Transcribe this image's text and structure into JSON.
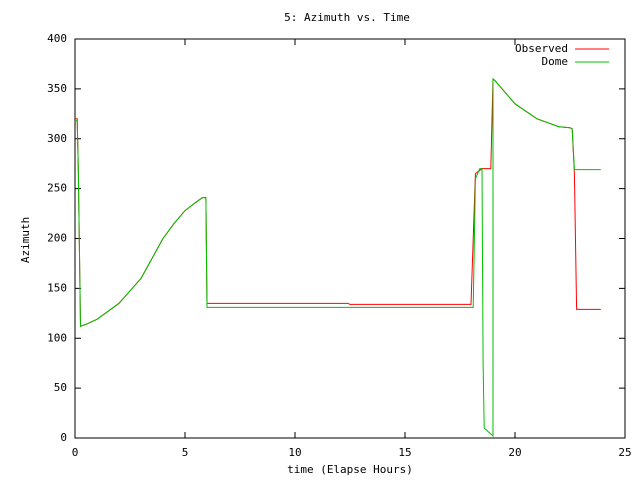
{
  "chart_data": {
    "type": "line",
    "title": "5: Azimuth vs. Time",
    "x_label": "time (Elapse Hours)",
    "y_label": "Azimuth",
    "xlim": [
      0,
      25
    ],
    "xticks": [
      0,
      5,
      10,
      15,
      20,
      25
    ],
    "ylim": [
      0,
      400
    ],
    "yticks": [
      0,
      50,
      100,
      150,
      200,
      250,
      300,
      350,
      400
    ],
    "grid": false,
    "legend": "top-right",
    "series": [
      {
        "name": "Observed",
        "color": "#ff0000",
        "x": [
          0,
          0.1,
          0.15,
          0.25,
          0.5,
          1,
          2,
          3,
          3.5,
          4,
          4.5,
          5,
          5.6,
          5.8,
          5.95,
          6.0,
          12.4,
          12.5,
          18.0,
          18.2,
          18.5,
          18.9,
          19.0,
          19.1,
          20,
          21,
          22,
          22.5,
          22.6,
          22.7,
          22.8,
          23.9
        ],
        "values": [
          320,
          320,
          270,
          112,
          114,
          119,
          135,
          160,
          180,
          200,
          215,
          228,
          238,
          241,
          241,
          135,
          135,
          134,
          134,
          265,
          270,
          270,
          360,
          358,
          335,
          320,
          312,
          311,
          310,
          265,
          129,
          129
        ]
      },
      {
        "name": "Dome",
        "color": "#00c000",
        "x": [
          0,
          0.1,
          0.15,
          0.25,
          0.5,
          1,
          2,
          3,
          3.5,
          4,
          4.5,
          5,
          5.6,
          5.8,
          5.95,
          6.0,
          18.1,
          18.2,
          18.4,
          18.5,
          18.55,
          18.6,
          19.0,
          19.0,
          19.1,
          20,
          21,
          22,
          22.5,
          22.6,
          22.7,
          22.8,
          23.9
        ],
        "values": [
          318,
          318,
          270,
          112,
          114,
          119,
          135,
          160,
          180,
          200,
          215,
          228,
          238,
          241,
          241,
          131,
          131,
          260,
          270,
          270,
          75,
          10,
          2,
          360,
          358,
          335,
          320,
          312,
          311,
          310,
          269,
          269,
          269
        ]
      }
    ]
  }
}
